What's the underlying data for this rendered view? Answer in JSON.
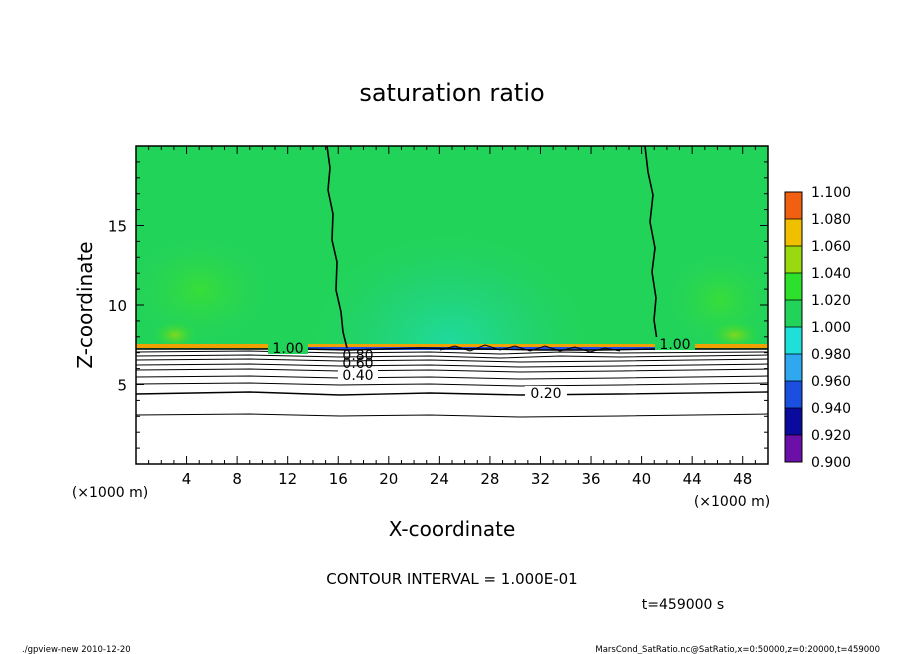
{
  "chart_data": {
    "type": "heatmap",
    "title": "saturation ratio",
    "xlabel": "X-coordinate",
    "ylabel": "Z-coordinate",
    "x_unit_left": "(×1000 m)",
    "x_unit_right": "(×1000 m)",
    "xlim": [
      0,
      50
    ],
    "ylim": [
      0,
      20
    ],
    "x_ticks": [
      4,
      8,
      12,
      16,
      20,
      24,
      28,
      32,
      36,
      40,
      44,
      48
    ],
    "y_ticks": [
      5,
      10,
      15
    ],
    "colorbar": {
      "levels": [
        0.9,
        0.92,
        0.94,
        0.96,
        0.98,
        1.0,
        1.02,
        1.04,
        1.06,
        1.08,
        1.1
      ],
      "labels": [
        "0.900",
        "0.920",
        "0.940",
        "0.960",
        "0.980",
        "1.000",
        "1.020",
        "1.040",
        "1.060",
        "1.080",
        "1.100"
      ],
      "colors": [
        "#6b0fa8",
        "#0a0a9c",
        "#1a4fe0",
        "#2fa8f0",
        "#1ee0d8",
        "#22d35a",
        "#2ce02c",
        "#9ad810",
        "#f0c000",
        "#f06010",
        "#ff8a8a"
      ]
    },
    "contours": [
      {
        "label": "1.00",
        "x_label": 11.5,
        "z_label": 7.2
      },
      {
        "label": "1.00",
        "x_label": 42.5,
        "z_label": 7.5
      },
      {
        "label": "0.80",
        "x_label": 17.5,
        "z_label": 6.8
      },
      {
        "label": "0.60",
        "x_label": 17.5,
        "z_label": 6.4
      },
      {
        "label": "0.40",
        "x_label": 17.5,
        "z_label": 5.6
      },
      {
        "label": "0.20",
        "x_label": 32.5,
        "z_label": 4.3
      }
    ],
    "contour_interval_text": "CONTOUR INTERVAL = 1.000E-01",
    "time_text": "t=459000 s"
  },
  "footer": {
    "left": "./gpview-new   2010-12-20",
    "right": "MarsCond_SatRatio.nc@SatRatio,x=0:50000,z=0:20000,t=459000"
  }
}
